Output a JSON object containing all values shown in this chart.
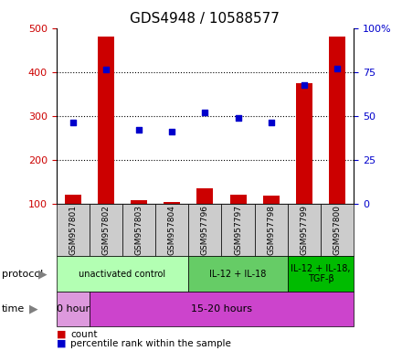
{
  "title": "GDS4948 / 10588577",
  "samples": [
    "GSM957801",
    "GSM957802",
    "GSM957803",
    "GSM957804",
    "GSM957796",
    "GSM957797",
    "GSM957798",
    "GSM957799",
    "GSM957800"
  ],
  "count_values": [
    120,
    480,
    108,
    103,
    135,
    120,
    118,
    375,
    480
  ],
  "percentile_values": [
    285,
    405,
    268,
    265,
    308,
    295,
    285,
    370,
    408
  ],
  "left_ylim": [
    100,
    500
  ],
  "left_yticks": [
    100,
    200,
    300,
    400,
    500
  ],
  "right_ylim": [
    0,
    100
  ],
  "right_yticks": [
    0,
    25,
    50,
    75,
    100
  ],
  "right_yticklabels": [
    "0",
    "25",
    "50",
    "75",
    "100%"
  ],
  "bar_color": "#cc0000",
  "dot_color": "#0000cc",
  "protocol_groups": [
    {
      "label": "unactivated control",
      "start": 0,
      "end": 4,
      "color": "#b3ffb3"
    },
    {
      "label": "IL-12 + IL-18",
      "start": 4,
      "end": 7,
      "color": "#66cc66"
    },
    {
      "label": "IL-12 + IL-18,\nTGF-β",
      "start": 7,
      "end": 9,
      "color": "#00bb00"
    }
  ],
  "time_groups": [
    {
      "label": "0 hour",
      "start": 0,
      "end": 1,
      "color": "#dd99dd"
    },
    {
      "label": "15-20 hours",
      "start": 1,
      "end": 9,
      "color": "#cc44cc"
    }
  ],
  "legend_items": [
    {
      "color": "#cc0000",
      "label": "count"
    },
    {
      "color": "#0000cc",
      "label": "percentile rank within the sample"
    }
  ],
  "left_tick_color": "#cc0000",
  "right_tick_color": "#0000cc",
  "sample_box_color": "#cccccc",
  "gridline_yticks": [
    200,
    300,
    400
  ]
}
